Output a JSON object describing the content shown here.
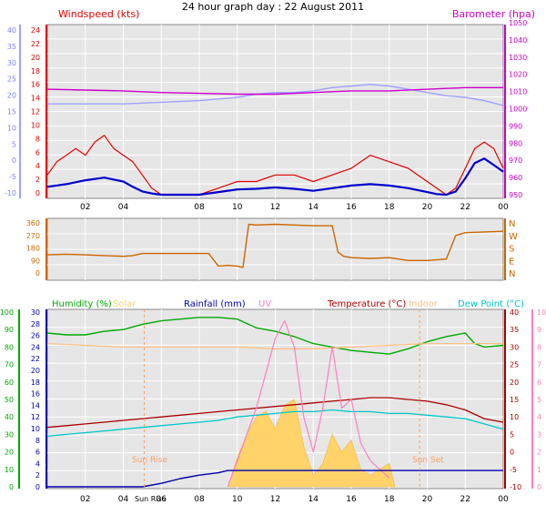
{
  "page_title": "24 hour graph day : 22 August 2011",
  "colors": {
    "wind": "#e00000",
    "wind_avg": "#0000cc",
    "temp_outdoor_outline": "#a0a0ff",
    "barometer": "#cc00cc",
    "direction": "#cc6600",
    "humidity": "#00aa00",
    "solar": "#ffd36a",
    "rainfall": "#0000aa",
    "uv": "#ff80c0",
    "temperature": "#aa0000",
    "indoor": "#ffc080",
    "dewpoint": "#00c8c8",
    "sun_marker": "#ffa060",
    "plot_bg": "#e6e6e6",
    "grid": "#ffffff"
  },
  "x_ticks": [
    "02",
    "04",
    "06",
    "08",
    "10",
    "12",
    "14",
    "16",
    "18",
    "20",
    "22",
    "00"
  ],
  "chart_data": [
    {
      "id": "wind",
      "type": "line",
      "x_range_hours": [
        0,
        24
      ],
      "left_axis": {
        "title": "Windspeed (kts)",
        "ticks": [
          "24",
          "22",
          "20",
          "18",
          "16",
          "14",
          "12",
          "10",
          "8",
          "6",
          "4",
          "2",
          "0"
        ],
        "range": [
          0,
          25
        ],
        "outer_ticks": [
          "40",
          "35",
          "30",
          "25",
          "20",
          "15",
          "10",
          "5",
          "0",
          "-5",
          "-10"
        ]
      },
      "right_axis": {
        "title": "Barometer (hpa)",
        "ticks": [
          "1050",
          "1040",
          "1030",
          "1020",
          "1010",
          "1000",
          "990",
          "980",
          "970",
          "960",
          "950"
        ],
        "range": [
          947,
          1053
        ]
      },
      "series": [
        {
          "key": "gust",
          "color_key": "wind",
          "x": [
            0,
            0.5,
            1,
            1.5,
            2,
            2.5,
            3,
            3.5,
            4,
            4.5,
            5,
            5.5,
            6,
            7,
            8,
            9,
            10,
            11,
            12,
            13,
            14,
            15,
            16,
            17,
            18,
            19,
            20,
            20.5,
            21,
            21.5,
            22,
            22.5,
            23,
            23.5,
            24
          ],
          "y": [
            3,
            5,
            6,
            7,
            6,
            8,
            9,
            7,
            6,
            5,
            3,
            1,
            0,
            0,
            0,
            1,
            2,
            2,
            3,
            3,
            2,
            3,
            4,
            6,
            5,
            4,
            2,
            1,
            0,
            1,
            4,
            7,
            8,
            7,
            4
          ]
        },
        {
          "key": "average",
          "color_key": "wind_avg",
          "x": [
            0,
            1,
            2,
            3,
            4,
            4.5,
            5,
            5.5,
            6,
            7,
            8,
            9,
            10,
            11,
            12,
            13,
            14,
            15,
            16,
            17,
            18,
            19,
            20,
            20.5,
            21,
            21.5,
            22,
            22.5,
            23,
            23.5,
            24
          ],
          "y": [
            1.2,
            1.6,
            2.2,
            2.6,
            2.0,
            1.2,
            0.5,
            0.2,
            0,
            0,
            0,
            0.4,
            0.8,
            0.9,
            1.1,
            0.9,
            0.6,
            1.0,
            1.4,
            1.6,
            1.4,
            1.0,
            0.4,
            0.1,
            0,
            0.5,
            2.5,
            4.8,
            5.5,
            4.5,
            3.5
          ]
        },
        {
          "key": "outdoor_reference",
          "color_key": "temp_outdoor_outline",
          "x": [
            0,
            2,
            4,
            6,
            8,
            9,
            10,
            11,
            12,
            13,
            14,
            15,
            16,
            17,
            18,
            19,
            20,
            21,
            22,
            23,
            24
          ],
          "y": [
            1003,
            1003,
            1003,
            1004,
            1005,
            1006,
            1007,
            1009,
            1010,
            1010,
            1011,
            1013,
            1014,
            1015,
            1014,
            1012,
            1010,
            1008,
            1007,
            1005,
            1002
          ]
        },
        {
          "key": "barometer",
          "color_key": "barometer",
          "x": [
            0,
            2,
            4,
            6,
            8,
            10,
            12,
            14,
            16,
            18,
            20,
            22,
            24
          ],
          "y": [
            1012,
            1011.5,
            1011,
            1010,
            1009.5,
            1009,
            1009,
            1010,
            1011,
            1011,
            1012,
            1013,
            1013
          ]
        }
      ]
    },
    {
      "id": "direction",
      "type": "line",
      "x_range_hours": [
        0,
        24
      ],
      "left_axis": {
        "ticks": [
          "360",
          "270",
          "180",
          "90",
          "0"
        ],
        "range": [
          0,
          360
        ]
      },
      "right_axis": {
        "ticks": [
          "N",
          "W",
          "S",
          "E",
          "N"
        ]
      },
      "series": [
        {
          "key": "wind_direction",
          "color_key": "direction",
          "x": [
            0,
            1,
            2,
            3,
            4,
            4.5,
            5,
            6,
            7,
            8,
            8.5,
            9,
            9.5,
            10,
            10.3,
            10.6,
            11,
            12,
            13,
            14,
            15,
            15.3,
            15.6,
            16,
            17,
            18,
            19,
            20,
            21,
            21.5,
            22,
            23,
            24
          ],
          "y": [
            130,
            135,
            130,
            125,
            120,
            125,
            140,
            140,
            140,
            140,
            140,
            50,
            55,
            50,
            40,
            350,
            345,
            350,
            345,
            340,
            340,
            150,
            120,
            110,
            105,
            110,
            90,
            90,
            100,
            270,
            290,
            295,
            300
          ]
        }
      ]
    },
    {
      "id": "temperature_humidity",
      "type": "line",
      "x_range_hours": [
        0,
        24
      ],
      "legend": [
        "Humidity (%)",
        "Solar",
        "Rainfall (mm)",
        "UV",
        "Temperature (°C)",
        "Indoor",
        "Dew Point (°C)"
      ],
      "annotations": [
        "Sun Rise",
        "Sun Set",
        "Sun Rise"
      ],
      "axis_humidity": {
        "ticks": [
          "100",
          "90",
          "80",
          "70",
          "60",
          "50",
          "40",
          "30",
          "20",
          "10",
          "0"
        ],
        "range": [
          0,
          100
        ]
      },
      "axis_rainfall": {
        "ticks": [
          "30",
          "28",
          "26",
          "24",
          "22",
          "20",
          "18",
          "16",
          "14",
          "12",
          "10",
          "8",
          "6",
          "4",
          "2",
          "0"
        ],
        "range": [
          0,
          30
        ]
      },
      "axis_temperature": {
        "ticks": [
          "40",
          "35",
          "30",
          "25",
          "20",
          "15",
          "10",
          "5",
          "0",
          "-5",
          "-10"
        ],
        "range": [
          -10,
          40
        ]
      },
      "axis_uv": {
        "ticks": [
          "10",
          "9",
          "8",
          "7",
          "6",
          "5",
          "4",
          "3",
          "2",
          "1",
          "0"
        ],
        "range": [
          0,
          10
        ]
      },
      "series": [
        {
          "key": "humidity",
          "color_key": "humidity",
          "x": [
            0,
            1,
            2,
            3,
            4,
            5,
            6,
            7,
            8,
            9,
            10,
            11,
            12,
            13,
            14,
            15,
            16,
            17,
            18,
            19,
            20,
            21,
            22,
            22.5,
            23,
            24
          ],
          "y": [
            88,
            87,
            87,
            89,
            90,
            93,
            95,
            96,
            97,
            97,
            96,
            91,
            89,
            86,
            82,
            80,
            78,
            77,
            76,
            79,
            83,
            86,
            88,
            82,
            80,
            81
          ]
        },
        {
          "key": "indoor",
          "color_key": "indoor",
          "x": [
            0,
            2,
            4,
            6,
            8,
            10,
            12,
            14,
            16,
            18,
            20,
            22,
            24
          ],
          "y": [
            31,
            30.5,
            30,
            30,
            30,
            30,
            29.5,
            29.5,
            30,
            30.5,
            31,
            31,
            31
          ]
        },
        {
          "key": "temperature",
          "color_key": "temperature",
          "x": [
            0,
            1,
            2,
            3,
            4,
            5,
            6,
            7,
            8,
            9,
            10,
            11,
            12,
            13,
            14,
            15,
            16,
            17,
            18,
            19,
            20,
            21,
            22,
            23,
            24
          ],
          "y": [
            7,
            7.5,
            8,
            8.5,
            9,
            9.5,
            10,
            10.5,
            11,
            11.5,
            12,
            12.5,
            13,
            13.5,
            14,
            14.5,
            15,
            15.5,
            15.5,
            15,
            14.5,
            13.5,
            12,
            9.5,
            8.5
          ]
        },
        {
          "key": "dewpoint",
          "color_key": "dewpoint",
          "x": [
            0,
            1,
            2,
            3,
            4,
            5,
            6,
            7,
            8,
            9,
            10,
            11,
            12,
            13,
            14,
            15,
            16,
            17,
            18,
            19,
            20,
            21,
            22,
            23,
            24
          ],
          "y": [
            4.5,
            5,
            5.5,
            6,
            6.5,
            7,
            7.5,
            8,
            8.5,
            9,
            10,
            10.5,
            11,
            11.5,
            11.5,
            12,
            11.5,
            11.5,
            11,
            11,
            10.5,
            10,
            9.5,
            8,
            6.5
          ]
        },
        {
          "key": "solar",
          "color_key": "solar",
          "x": [
            9.5,
            10,
            10.5,
            11,
            11.5,
            12,
            12.5,
            13,
            13.5,
            14,
            14.5,
            15,
            15.5,
            16,
            16.5,
            17,
            17.5,
            18,
            18.3
          ],
          "y": [
            0,
            5,
            9,
            12,
            13,
            10,
            14,
            15,
            7,
            2,
            4,
            9,
            6,
            8,
            3,
            2,
            3,
            4,
            0
          ]
        },
        {
          "key": "uv",
          "color_key": "uv",
          "x": [
            9.5,
            10,
            10.5,
            11,
            11.5,
            12,
            12.5,
            13,
            13.5,
            14,
            14.5,
            15,
            15.5,
            16,
            16.5,
            17,
            17.5,
            18
          ],
          "y": [
            0,
            1.5,
            3,
            4.5,
            6.5,
            8.5,
            9.5,
            8,
            4,
            2,
            4.5,
            8,
            4.5,
            5,
            2.5,
            1.5,
            1,
            0.5
          ]
        },
        {
          "key": "rainfall",
          "color_key": "rainfall",
          "x": [
            0,
            5,
            6,
            7,
            8,
            9,
            9.5,
            24
          ],
          "y": [
            0,
            0,
            0.6,
            1.4,
            2,
            2.4,
            2.8,
            2.8
          ]
        }
      ]
    }
  ]
}
